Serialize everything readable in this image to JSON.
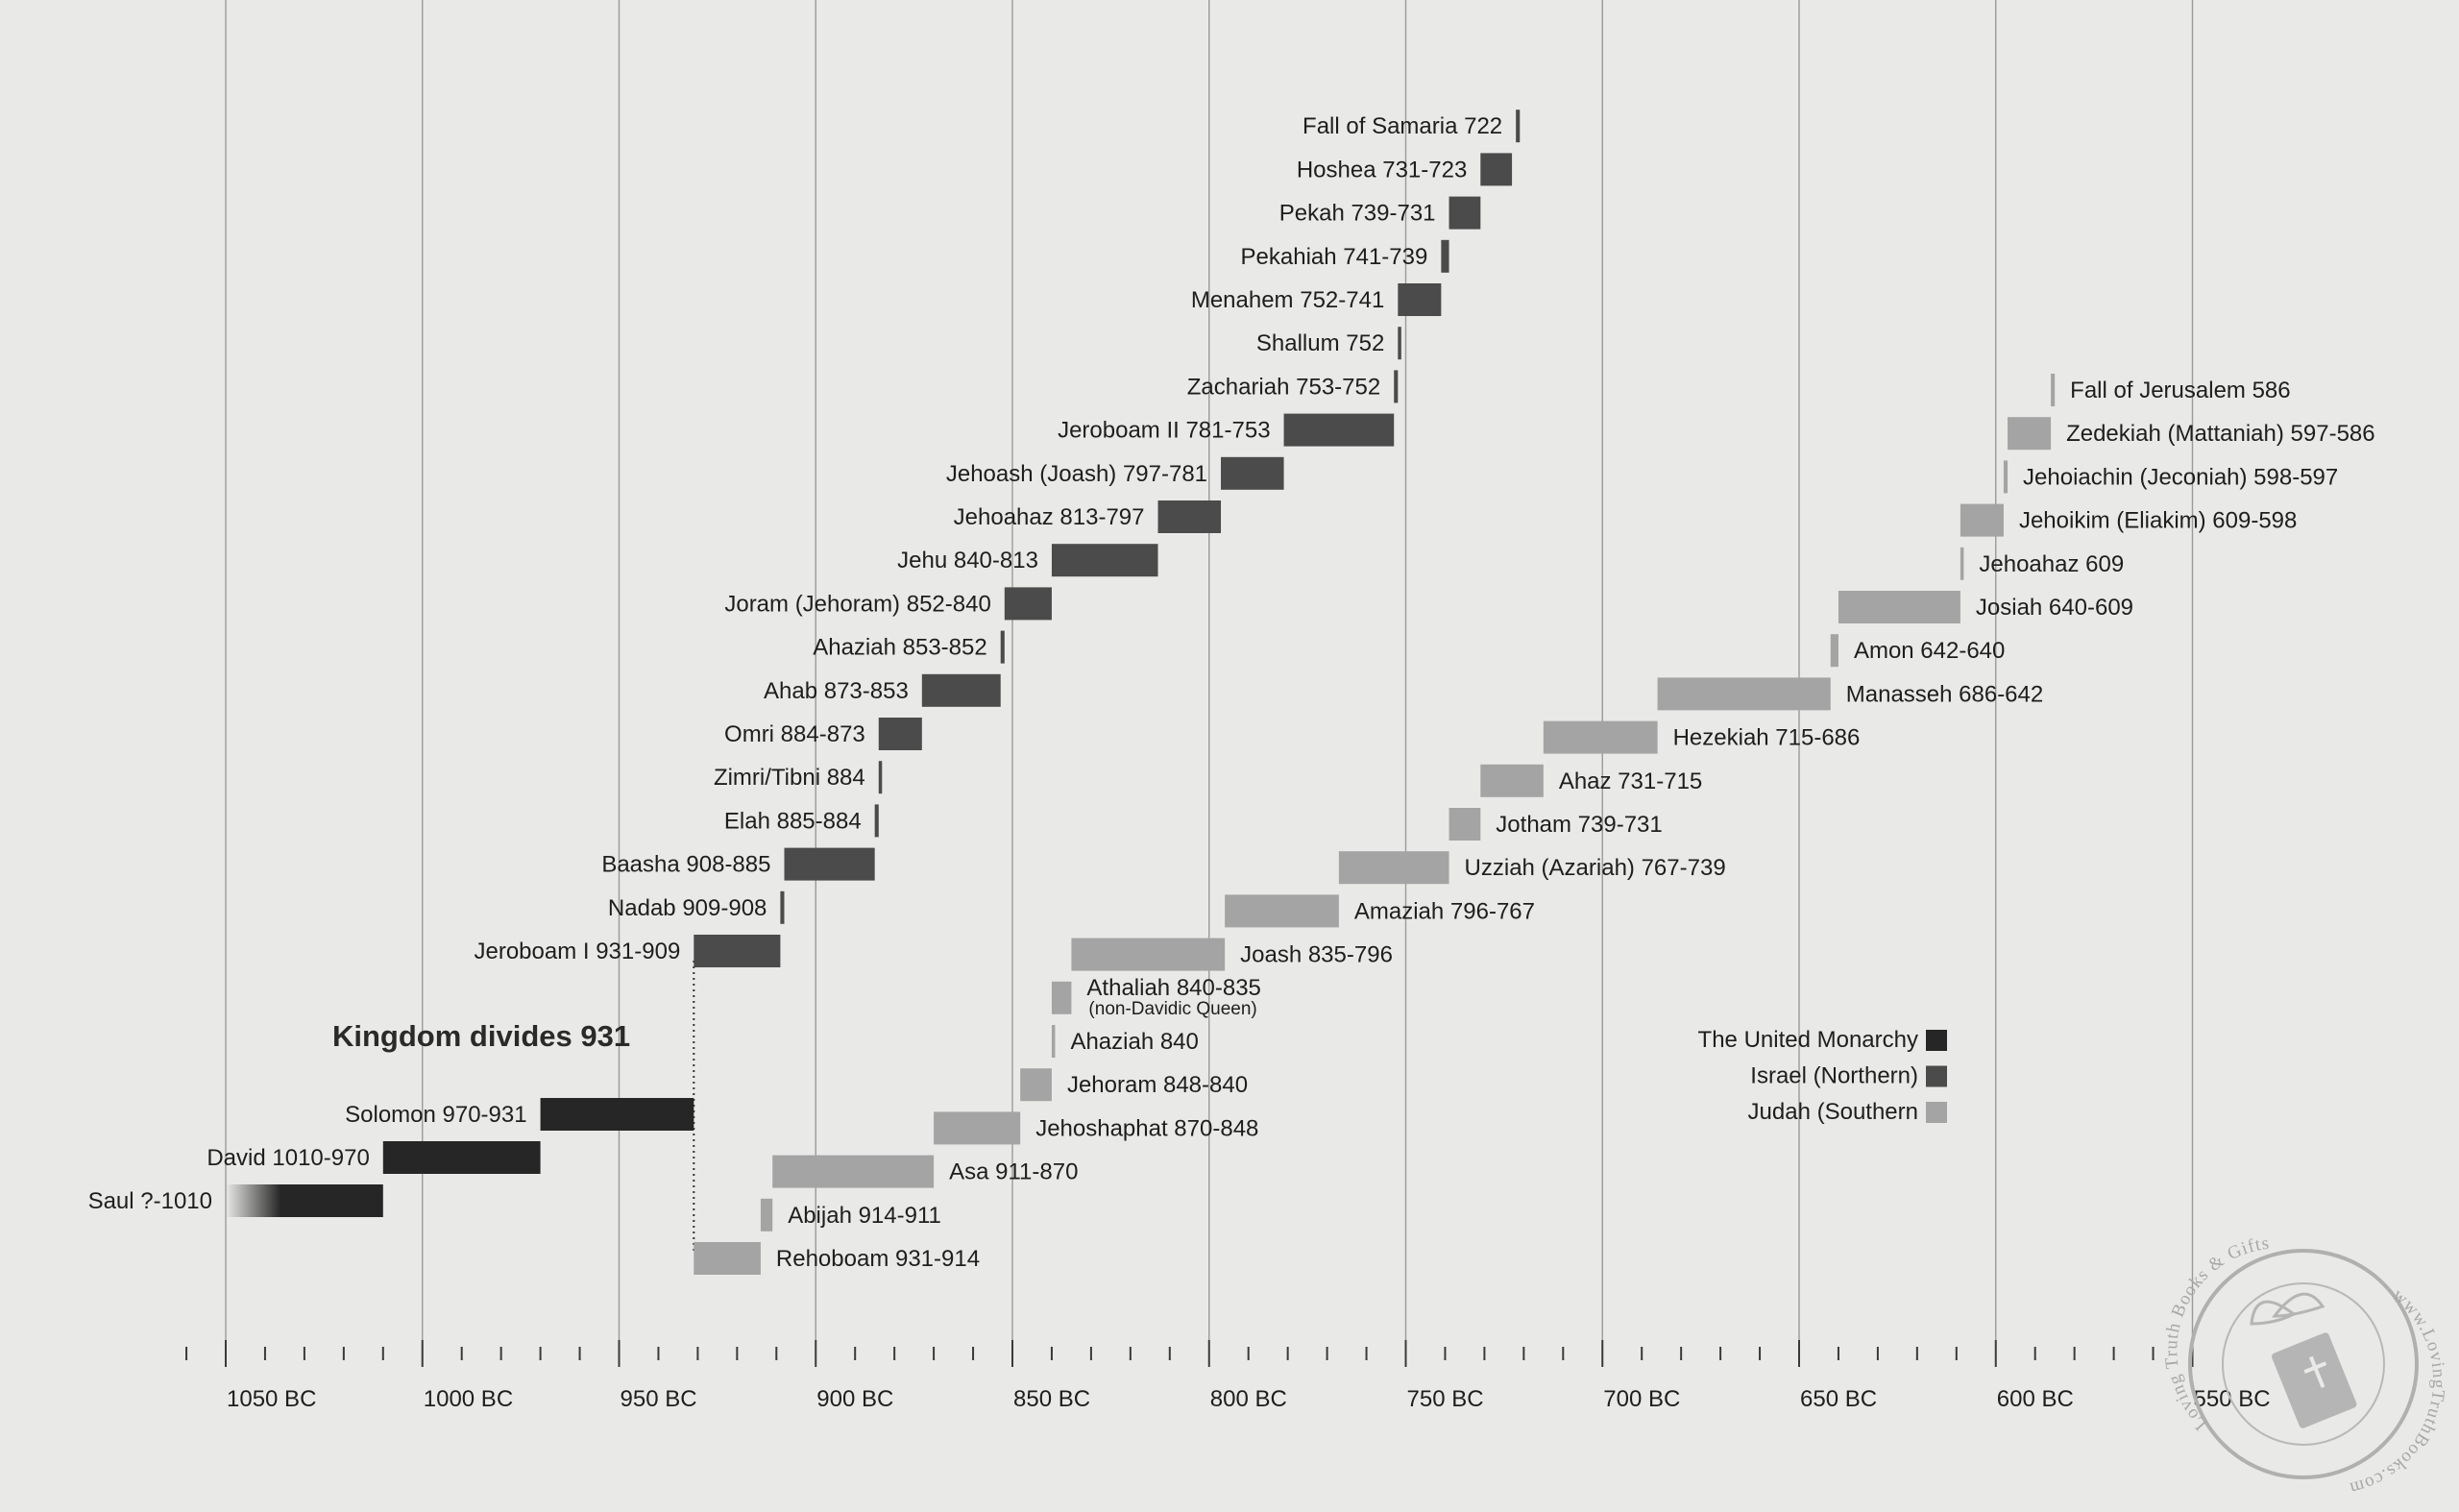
{
  "colors": {
    "united": "#262626",
    "israel": "#4b4b4b",
    "judah": "#a4a4a4",
    "grid": "#9a9a9a",
    "background": "#e9e9e7"
  },
  "chart_data": {
    "type": "timeline",
    "x_axis": {
      "unit": "BC",
      "direction": "descending",
      "range": [
        1060,
        545
      ],
      "major_ticks": [
        1050,
        1000,
        950,
        900,
        850,
        800,
        750,
        700,
        650,
        600,
        550
      ],
      "major_tick_labels": [
        "1050 BC",
        "1000 BC",
        "950 BC",
        "900 BC",
        "850 BC",
        "800 BC",
        "750 BC",
        "700 BC",
        "650 BC",
        "600 BC",
        "550 BC"
      ],
      "minor_tick_step": 10,
      "grid": true
    },
    "annotation": {
      "text": "Kingdom divides 931",
      "year": 931
    },
    "legend": {
      "placement": "right",
      "items": [
        {
          "label": "The United Monarchy",
          "kingdom": "united"
        },
        {
          "label": "Israel (Northern)",
          "kingdom": "israel"
        },
        {
          "label": "Judah (Southern",
          "kingdom": "judah"
        }
      ]
    },
    "series": [
      {
        "name": "The United Monarchy",
        "kingdom": "united",
        "reigns": [
          {
            "label": "Saul ?-1010",
            "start": 1050,
            "end": 1010,
            "fade_start": true
          },
          {
            "label": "David 1010-970",
            "start": 1010,
            "end": 970
          },
          {
            "label": "Solomon 970-931",
            "start": 970,
            "end": 931
          }
        ]
      },
      {
        "name": "Israel (Northern)",
        "kingdom": "israel",
        "reigns": [
          {
            "label": "Jeroboam I 931-909",
            "start": 931,
            "end": 909
          },
          {
            "label": "Nadab 909-908",
            "start": 909,
            "end": 908
          },
          {
            "label": "Baasha 908-885",
            "start": 908,
            "end": 885
          },
          {
            "label": "Elah 885-884",
            "start": 885,
            "end": 884
          },
          {
            "label": "Zimri/Tibni 884",
            "start": 884,
            "end": 883.4
          },
          {
            "label": "Omri 884-873",
            "start": 884,
            "end": 873
          },
          {
            "label": "Ahab 873-853",
            "start": 873,
            "end": 853
          },
          {
            "label": "Ahaziah 853-852",
            "start": 853,
            "end": 852
          },
          {
            "label": "Joram (Jehoram) 852-840",
            "start": 852,
            "end": 840
          },
          {
            "label": "Jehu 840-813",
            "start": 840,
            "end": 813
          },
          {
            "label": "Jehoahaz 813-797",
            "start": 813,
            "end": 797
          },
          {
            "label": "Jehoash (Joash) 797-781",
            "start": 797,
            "end": 781
          },
          {
            "label": "Jeroboam II 781-753",
            "start": 781,
            "end": 753
          },
          {
            "label": "Zachariah 753-752",
            "start": 753,
            "end": 752
          },
          {
            "label": "Shallum 752",
            "start": 752,
            "end": 751.4
          },
          {
            "label": "Menahem 752-741",
            "start": 752,
            "end": 741
          },
          {
            "label": "Pekahiah 741-739",
            "start": 741,
            "end": 739
          },
          {
            "label": "Pekah 739-731",
            "start": 739,
            "end": 731
          },
          {
            "label": "Hoshea 731-723",
            "start": 731,
            "end": 723
          },
          {
            "label": "Fall of Samaria 722",
            "start": 722,
            "end": 721
          }
        ]
      },
      {
        "name": "Judah (Southern",
        "kingdom": "judah",
        "reigns": [
          {
            "label": "Rehoboam 931-914",
            "start": 931,
            "end": 914
          },
          {
            "label": "Abijah 914-911",
            "start": 914,
            "end": 911
          },
          {
            "label": "Asa 911-870",
            "start": 911,
            "end": 870
          },
          {
            "label": "Jehoshaphat 870-848",
            "start": 870,
            "end": 848
          },
          {
            "label": "Jehoram 848-840",
            "start": 848,
            "end": 840
          },
          {
            "label": "Ahaziah 840",
            "start": 840,
            "end": 839.4
          },
          {
            "label": "Athaliah 840-835",
            "sublabel": "(non-Davidic Queen)",
            "start": 840,
            "end": 835
          },
          {
            "label": "Joash 835-796",
            "start": 835,
            "end": 796
          },
          {
            "label": "Amaziah 796-767",
            "start": 796,
            "end": 767
          },
          {
            "label": "Uzziah (Azariah) 767-739",
            "start": 767,
            "end": 739
          },
          {
            "label": "Jotham 739-731",
            "start": 739,
            "end": 731
          },
          {
            "label": "Ahaz 731-715",
            "start": 731,
            "end": 715
          },
          {
            "label": "Hezekiah 715-686",
            "start": 715,
            "end": 686
          },
          {
            "label": "Manasseh 686-642",
            "start": 686,
            "end": 642
          },
          {
            "label": "Amon 642-640",
            "start": 642,
            "end": 640
          },
          {
            "label": "Josiah 640-609",
            "start": 640,
            "end": 609
          },
          {
            "label": "Jehoahaz 609",
            "start": 609,
            "end": 608.4
          },
          {
            "label": "Jehoikim (Eliakim) 609-598",
            "start": 609,
            "end": 598
          },
          {
            "label": "Jehoiachin (Jeconiah) 598-597",
            "start": 598,
            "end": 597
          },
          {
            "label": "Zedekiah (Mattaniah) 597-586",
            "start": 597,
            "end": 586
          },
          {
            "label": "Fall of Jerusalem 586",
            "start": 586,
            "end": 585
          }
        ]
      }
    ]
  },
  "watermark": {
    "left_text": "Loving Truth Books & Gifts",
    "right_text": "www.LovingTruthBooks.com",
    "icon": "gift-bible-icon"
  }
}
